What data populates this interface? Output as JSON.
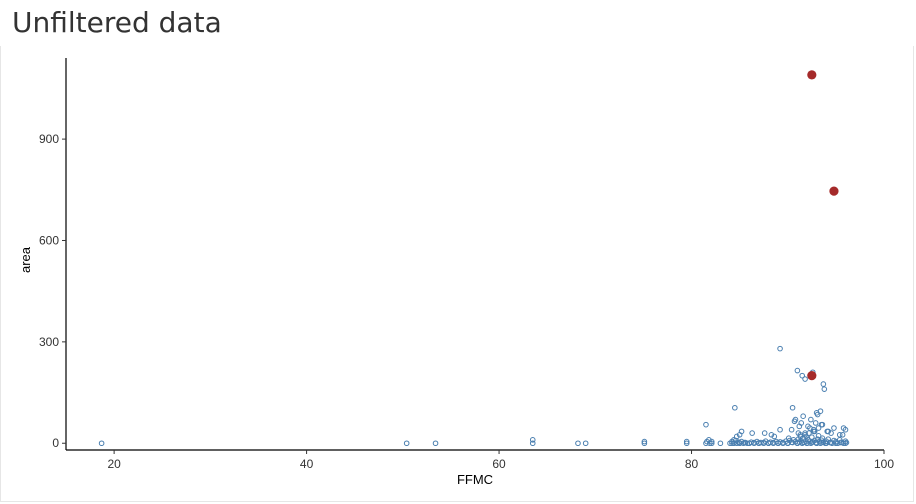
{
  "title": "Unfiltered data",
  "chart_data": {
    "type": "scatter",
    "title": "",
    "xlabel": "FFMC",
    "ylabel": "area",
    "xlim": [
      15,
      100
    ],
    "ylim": [
      -20,
      1140
    ],
    "xticks": [
      20,
      40,
      60,
      80,
      100
    ],
    "yticks": [
      0,
      300,
      600,
      900
    ],
    "grid": false,
    "legend": "none",
    "colors": {
      "normal": "#4a7fb0",
      "outlier": "#a52a2a"
    },
    "series": [
      {
        "kind": "normal",
        "x": [
          18.7,
          50.4,
          53.4,
          63.5,
          63.5,
          68.2,
          69.0,
          75.1,
          75.1,
          79.5,
          79.5,
          81.5,
          81.6,
          81.8,
          81.9,
          82.1,
          82.1,
          83.0,
          84.0,
          84.2,
          84.4,
          84.6,
          84.7,
          84.9,
          85.0,
          85.2,
          85.4,
          85.6,
          85.8,
          86.0,
          86.2,
          86.5,
          86.8,
          87.0,
          87.2,
          87.5,
          87.7,
          88.0,
          88.2,
          88.5,
          88.8,
          89.0,
          89.2,
          89.5,
          89.8,
          90.0,
          90.2,
          90.4,
          90.6,
          90.8,
          91.0,
          91.1,
          91.2,
          91.3,
          91.4,
          91.5,
          91.6,
          91.7,
          91.8,
          91.9,
          92.0,
          92.1,
          92.2,
          92.3,
          92.4,
          92.5,
          92.6,
          92.7,
          92.8,
          92.9,
          93.0,
          93.1,
          93.2,
          93.3,
          93.4,
          93.5,
          93.6,
          93.7,
          93.9,
          94.0,
          94.2,
          94.4,
          94.6,
          94.8,
          95.0,
          95.2,
          95.4,
          95.6,
          95.8,
          96.0,
          96.1,
          84.4,
          85.0,
          87.0,
          88.0,
          89.0,
          90.0,
          91.0,
          92.0,
          93.0,
          94.0,
          95.0,
          85.5,
          86.5,
          87.5,
          88.5,
          89.5,
          90.5,
          91.5,
          92.5,
          93.5,
          94.5,
          95.5,
          84.2,
          86.0,
          88.0,
          90.0,
          92.0,
          94.0,
          96.0,
          85.0,
          87.0,
          89.0,
          91.0,
          93.0,
          95.0,
          84.5,
          84.7,
          81.5,
          85.2,
          87.6,
          88.3,
          89.2,
          90.5,
          90.8,
          91.4,
          91.8,
          92.1,
          92.7,
          93.1,
          93.6,
          94.1,
          94.8,
          95.7,
          96.0,
          89.2,
          91.0,
          91.5,
          91.8,
          92.6,
          93.7,
          84.4,
          85.0,
          90.7,
          91.6,
          92.4,
          93.0,
          93.4,
          91.2,
          92.3,
          92.9,
          93.5,
          94.2,
          90.4,
          91.1,
          91.9,
          93.2,
          94.5,
          95.4,
          95.8,
          86.3,
          88.6,
          90.1,
          91.3,
          92.8,
          93.8
        ],
        "y": [
          0,
          0,
          0,
          0,
          10,
          0,
          0,
          0,
          5,
          0,
          5,
          0,
          5,
          10,
          0,
          5,
          0,
          0,
          0,
          5,
          0,
          8,
          0,
          3,
          0,
          5,
          0,
          2,
          0,
          0,
          3,
          0,
          5,
          0,
          2,
          0,
          6,
          0,
          3,
          0,
          5,
          0,
          4,
          0,
          6,
          0,
          8,
          3,
          10,
          5,
          0,
          12,
          4,
          20,
          7,
          0,
          15,
          3,
          25,
          5,
          0,
          10,
          30,
          6,
          0,
          18,
          4,
          35,
          8,
          2,
          0,
          12,
          22,
          5,
          0,
          9,
          15,
          3,
          0,
          6,
          12,
          2,
          0,
          8,
          5,
          0,
          10,
          3,
          0,
          6,
          2,
          1,
          1,
          1,
          1,
          1,
          1,
          1,
          1,
          1,
          1,
          1,
          2,
          2,
          2,
          2,
          2,
          2,
          2,
          2,
          2,
          2,
          2,
          0,
          0,
          0,
          0,
          0,
          0,
          0,
          0,
          0,
          0,
          0,
          0,
          0,
          105,
          20,
          55,
          35,
          30,
          25,
          40,
          105,
          70,
          60,
          30,
          50,
          40,
          85,
          55,
          35,
          45,
          25,
          40,
          280,
          215,
          200,
          190,
          210,
          175,
          10,
          25,
          65,
          80,
          70,
          90,
          95,
          50,
          45,
          60,
          55,
          35,
          40,
          30,
          20,
          45,
          30,
          25,
          45,
          30,
          20,
          15,
          25,
          35,
          160
        ]
      },
      {
        "kind": "outlier",
        "x": [
          92.5,
          94.8,
          92.5
        ],
        "y": [
          1090,
          746,
          200
        ]
      }
    ]
  }
}
